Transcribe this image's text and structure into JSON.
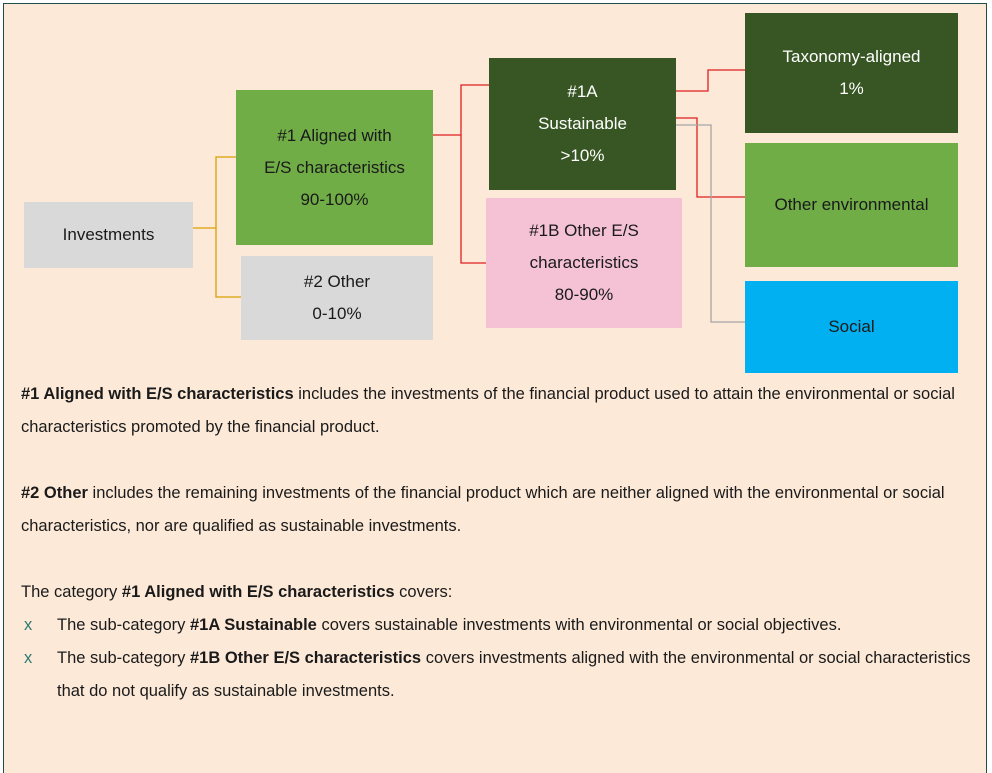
{
  "nodes": [
    {
      "lines": [
        "Investments"
      ]
    },
    {
      "lines": [
        "#1 Aligned with",
        "E/S characteristics",
        "90-100%"
      ]
    },
    {
      "lines": [
        "#2 Other",
        "0-10%"
      ]
    },
    {
      "lines": [
        "#1A",
        "Sustainable",
        ">10%"
      ]
    },
    {
      "lines": [
        "#1B Other E/S",
        "characteristics",
        "80-90%"
      ]
    },
    {
      "lines": [
        "Taxonomy-aligned",
        "1%"
      ]
    },
    {
      "lines": [
        "Other environmental"
      ]
    },
    {
      "lines": [
        "Social"
      ]
    }
  ],
  "paragraphs": [
    [
      {
        "b": "#1 Aligned with E/S characteristics"
      },
      {
        "t": "includes the investments of the financial product used to attain the environmental or social characteristics promoted by the financial product."
      }
    ],
    [
      {
        "b": "#2 Other"
      },
      {
        "t": "includes the remaining investments of the financial product which are neither aligned with the environmental or social characteristics, nor are qualified as sustainable investments."
      }
    ],
    [
      {
        "t": "The category"
      },
      {
        "b": "#1 Aligned with E/S characteristics"
      },
      {
        "t": "covers:"
      }
    ]
  ],
  "list": {
    "bullet": "x",
    "items": [
      [
        {
          "t": "The sub-category"
        },
        {
          "b": "#1A Sustainable"
        },
        {
          "t": "covers sustainable investments with environmental or social objectives."
        }
      ],
      [
        {
          "t": "The sub-category"
        },
        {
          "b": "#1B Other E/S characteristics"
        },
        {
          "t": "covers investments aligned with the environmental or social characteristics that do not qualify as sustainable investments."
        }
      ]
    ]
  }
}
